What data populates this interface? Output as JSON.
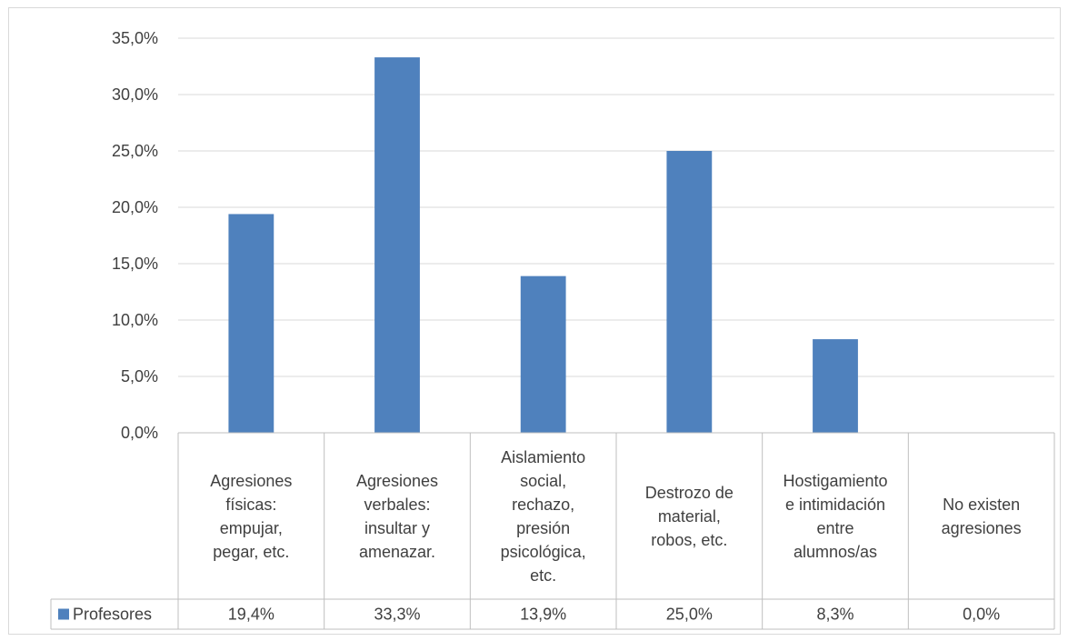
{
  "chart_data": {
    "type": "bar",
    "categories": [
      [
        "Agresiones",
        "físicas:",
        "empujar,",
        "pegar, etc."
      ],
      [
        "Agresiones",
        "verbales:",
        "insultar y",
        "amenazar."
      ],
      [
        "Aislamiento",
        "social,",
        "rechazo,",
        "presión",
        "psicológica,",
        "etc."
      ],
      [
        "Destrozo de",
        "material,",
        "robos, etc."
      ],
      [
        "Hostigamiento",
        "e intimidación",
        "entre",
        "alumnos/as"
      ],
      [
        "No existen",
        "agresiones"
      ]
    ],
    "series": [
      {
        "name": "Profesores",
        "color": "#4f81bd",
        "values": [
          19.4,
          33.3,
          13.9,
          25.0,
          8.3,
          0.0
        ],
        "labels": [
          "19,4%",
          "33,3%",
          "13,9%",
          "25,0%",
          "8,3%",
          "0,0%"
        ]
      }
    ],
    "y_ticks": [
      "0,0%",
      "5,0%",
      "10,0%",
      "15,0%",
      "20,0%",
      "25,0%",
      "30,0%",
      "35,0%"
    ],
    "ylim": [
      0,
      35
    ],
    "grid": true,
    "legend": "data-table-left",
    "title": "",
    "xlabel": "",
    "ylabel": ""
  }
}
